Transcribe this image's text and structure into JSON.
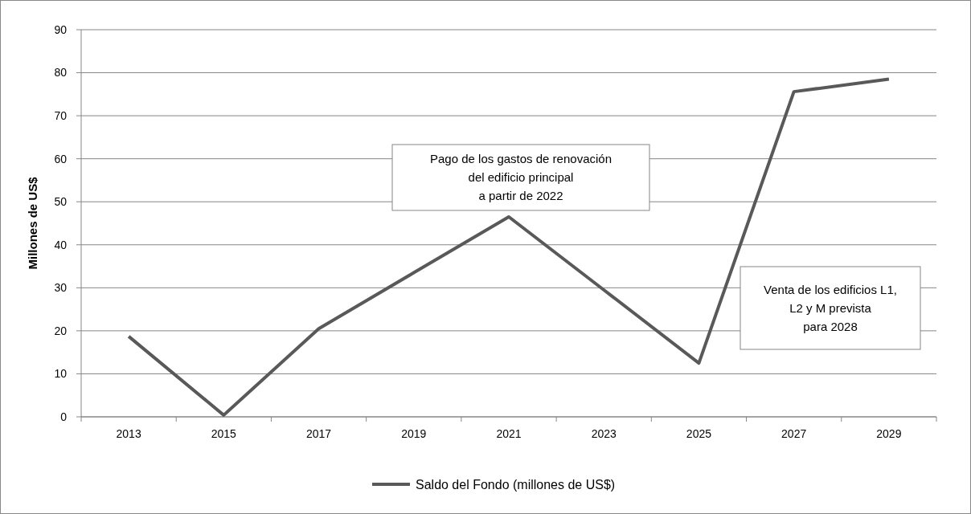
{
  "chart_data": {
    "type": "line",
    "ylabel": "Millones de US$",
    "categories": [
      "2013",
      "2015",
      "2017",
      "2019",
      "2021",
      "2023",
      "2025",
      "2027",
      "2029"
    ],
    "series": [
      {
        "name": "Saldo del Fondo (millones de US$)",
        "color": "#595959",
        "values": [
          18.7,
          0.4,
          20.5,
          33.5,
          46.5,
          29.5,
          12.5,
          75.6,
          78.5
        ]
      }
    ],
    "ylim": [
      0,
      90
    ],
    "yticks": [
      0,
      10,
      20,
      30,
      40,
      50,
      60,
      70,
      80,
      90
    ],
    "grid": "y",
    "legend": "bottom",
    "marker": "none",
    "line_style": "solid",
    "annotations": [
      "Pago de los gastos de renovación\ndel edificio principal\na partir de 2022",
      "Venta de los edificios L1,\nL2 y M prevista\npara 2028"
    ]
  }
}
